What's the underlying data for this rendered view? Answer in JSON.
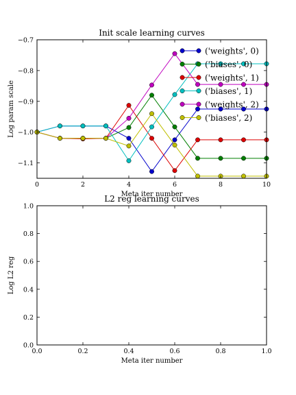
{
  "chart_data": [
    {
      "type": "line",
      "title": "Init scale learning curves",
      "xlabel": "Meta iter number",
      "ylabel": "Log param scale",
      "xlim": [
        0,
        10
      ],
      "ylim": [
        -1.15,
        -0.7
      ],
      "xticks": [
        0,
        2,
        4,
        6,
        8,
        10
      ],
      "yticks": [
        -0.7,
        -0.8,
        -0.9,
        -1.0,
        -1.1
      ],
      "xtick_labels": [
        "0",
        "2",
        "4",
        "6",
        "8",
        "10"
      ],
      "ytick_labels": [
        "−0.7",
        "−0.8",
        "−0.9",
        "−1.0",
        "−1.1"
      ],
      "grid": false,
      "legend_position": "top-right",
      "x": [
        0,
        1,
        2,
        3,
        4,
        5,
        6,
        7,
        8,
        9,
        10
      ],
      "series": [
        {
          "name": "('weights', 0)",
          "color": "#0000cc",
          "values": [
            -1.0,
            -0.98,
            -0.98,
            -0.98,
            -1.02,
            -1.128,
            -1.025,
            -0.925,
            -0.925,
            -0.925,
            -0.925
          ]
        },
        {
          "name": "('biases', 0)",
          "color": "#007f00",
          "values": [
            -1.0,
            -1.02,
            -1.02,
            -1.02,
            -0.985,
            -0.88,
            -0.983,
            -1.085,
            -1.085,
            -1.085,
            -1.085
          ]
        },
        {
          "name": "('weights', 1)",
          "color": "#dd0000",
          "values": [
            -1.0,
            -1.02,
            -1.022,
            -1.02,
            -0.913,
            -1.02,
            -1.125,
            -1.025,
            -1.025,
            -1.025,
            -1.025
          ]
        },
        {
          "name": "('biases', 1)",
          "color": "#00bfbf",
          "values": [
            -1.0,
            -0.98,
            -0.98,
            -0.98,
            -1.093,
            -0.983,
            -0.878,
            -0.778,
            -0.778,
            -0.778,
            -0.778
          ]
        },
        {
          "name": "('weights', 2)",
          "color": "#bf00bf",
          "values": [
            -1.0,
            -1.02,
            -1.02,
            -1.02,
            -0.955,
            -0.847,
            -0.745,
            -0.845,
            -0.845,
            -0.845,
            -0.845
          ]
        },
        {
          "name": "('biases', 2)",
          "color": "#bfbf00",
          "values": [
            -1.0,
            -1.02,
            -1.02,
            -1.02,
            -1.045,
            -0.94,
            -1.042,
            -1.143,
            -1.143,
            -1.143,
            -1.143
          ]
        }
      ]
    },
    {
      "type": "line",
      "title": "L2 reg learning curves",
      "xlabel": "Meta iter number",
      "ylabel": "Log L2 reg",
      "xlim": [
        0,
        1
      ],
      "ylim": [
        0,
        1
      ],
      "xticks": [
        0,
        0.2,
        0.4,
        0.6,
        0.8,
        1.0
      ],
      "yticks": [
        0,
        0.2,
        0.4,
        0.6,
        0.8,
        1.0
      ],
      "xtick_labels": [
        "0.0",
        "0.2",
        "0.4",
        "0.6",
        "0.8",
        "1.0"
      ],
      "ytick_labels": [
        "0.0",
        "0.2",
        "0.4",
        "0.6",
        "0.8",
        "1.0"
      ],
      "grid": false,
      "series": []
    }
  ]
}
